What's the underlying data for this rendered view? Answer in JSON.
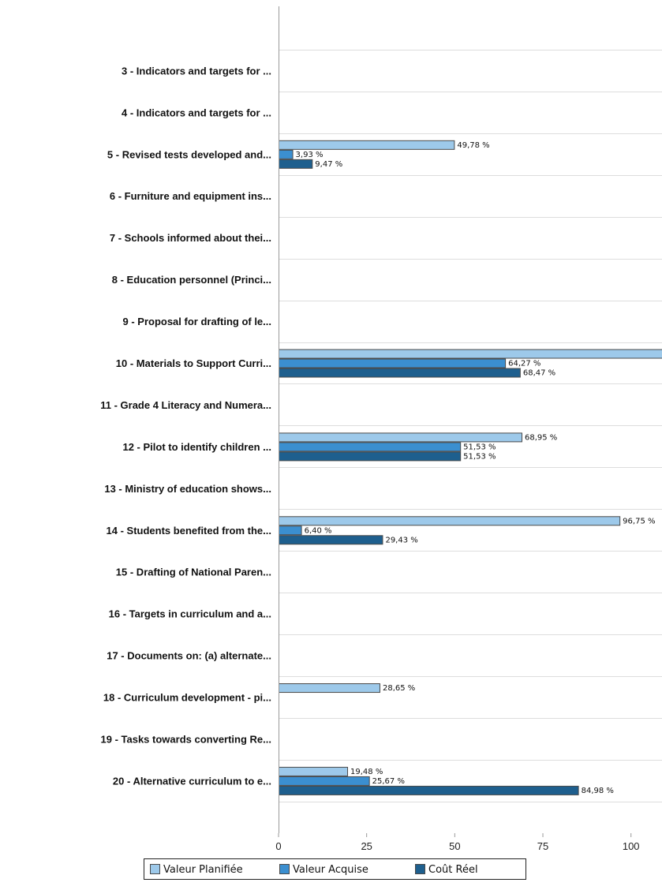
{
  "chart_data": {
    "type": "bar",
    "orientation": "horizontal",
    "title": "",
    "xlabel": "",
    "ylabel": "",
    "xlim": [
      0,
      108
    ],
    "x_ticks": [
      0,
      25,
      50,
      75,
      100
    ],
    "grid": "horizontal separators between categories",
    "legend_position": "bottom",
    "categories": [
      "",
      "3 - Indicators and targets for ...",
      "4 - Indicators and targets for ...",
      "5 - Revised tests developed and...",
      "6 - Furniture and equipment ins...",
      "7 - Schools informed about thei...",
      "8 - Education personnel (Princi...",
      "9 - Proposal for drafting of le...",
      "10 - Materials to  Support Curri...",
      "11 - Grade 4 Literacy and Numera...",
      "12 - Pilot to identify children ...",
      "13 - Ministry of education shows...",
      "14 - Students benefited from the...",
      "15 - Drafting of  National Paren...",
      "16 - Targets in curriculum and a...",
      "17 - Documents on: (a) alternate...",
      "18 - Curriculum development - pi...",
      "19 - Tasks towards converting Re...",
      "20 - Alternative curriculum to e..."
    ],
    "series": [
      {
        "name": "Valeur Planifiée",
        "color": "#9dc9ea",
        "values": [
          null,
          null,
          null,
          49.78,
          null,
          null,
          null,
          null,
          110,
          null,
          68.95,
          null,
          96.75,
          null,
          null,
          null,
          28.65,
          null,
          19.48
        ],
        "labels": [
          null,
          null,
          null,
          "49,78 %",
          null,
          null,
          null,
          null,
          null,
          null,
          "68,95 %",
          null,
          "96,75 %",
          null,
          null,
          null,
          "28,65 %",
          null,
          "19,48 %"
        ]
      },
      {
        "name": "Valeur Acquise",
        "color": "#3b8fd0",
        "values": [
          null,
          null,
          null,
          3.93,
          null,
          null,
          null,
          null,
          64.27,
          null,
          51.53,
          null,
          6.4,
          null,
          null,
          null,
          null,
          null,
          25.67
        ],
        "labels": [
          null,
          null,
          null,
          "3,93 %",
          null,
          null,
          null,
          null,
          "64,27 %",
          null,
          "51,53 %",
          null,
          "6,40 %",
          null,
          null,
          null,
          null,
          null,
          "25,67 %"
        ]
      },
      {
        "name": "Coût Réel",
        "color": "#1e5f8e",
        "values": [
          null,
          null,
          null,
          9.47,
          null,
          null,
          null,
          null,
          68.47,
          null,
          51.53,
          null,
          29.43,
          null,
          null,
          null,
          null,
          null,
          84.98
        ],
        "labels": [
          null,
          null,
          null,
          "9,47 %",
          null,
          null,
          null,
          null,
          "68,47 %",
          null,
          "51,53 %",
          null,
          "29,43 %",
          null,
          null,
          null,
          null,
          null,
          "84,98 %"
        ]
      }
    ]
  }
}
